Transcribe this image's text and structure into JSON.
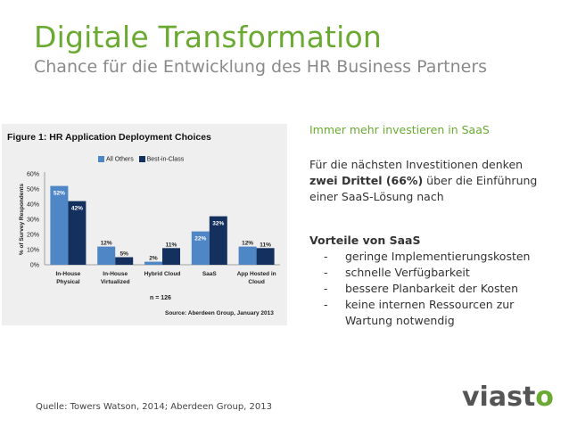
{
  "header": {
    "title": "Digitale Transformation",
    "subtitle": "Chance für die Entwicklung des HR Business Partners"
  },
  "figure": {
    "title": "Figure 1: HR Application Deployment Choices",
    "n_label": "n = 126",
    "source_label": "Source: Aberdeen Group, January 2013",
    "colors": {
      "all_others": "#4f86c6",
      "best_in_class": "#14305e"
    }
  },
  "chart_data": {
    "type": "bar",
    "categories": [
      [
        "In-House",
        "Physical"
      ],
      [
        "In-House",
        "Virtualized"
      ],
      [
        "Hybrid Cloud"
      ],
      [
        "SaaS"
      ],
      [
        "App Hosted in",
        "Cloud"
      ]
    ],
    "series": [
      {
        "name": "All Others",
        "values": [
          52,
          12,
          2,
          22,
          12
        ],
        "labels": [
          "52%",
          "12%",
          "2%",
          "22%",
          "12%"
        ]
      },
      {
        "name": "Best-in-Class",
        "values": [
          42,
          5,
          11,
          32,
          11
        ],
        "labels": [
          "42%",
          "5%",
          "11%",
          "32%",
          "11%"
        ]
      }
    ],
    "ylabel": "% of Survey Respondents",
    "yticks": [
      "0%",
      "10%",
      "20%",
      "30%",
      "40%",
      "50%",
      "60%"
    ],
    "ylim": [
      0,
      60
    ],
    "legend_position": "top"
  },
  "right": {
    "highlight": "Immer mehr investieren in SaaS",
    "para_before": "Für die nächsten Investitionen denken ",
    "para_bold": "zwei Drittel (66%)",
    "para_after": " über die Einführung einer SaaS-Lösung nach",
    "vorteile_title": "Vorteile von SaaS",
    "vorteile": [
      "geringe Implementierungskosten",
      "schnelle Verfügbarkeit",
      "bessere Planbarkeit der Kosten",
      "keine internen Ressourcen zur Wartung notwendig"
    ],
    "dash": "-"
  },
  "footer": {
    "quelle": "Quelle: Towers Watson, 2014; Aberdeen Group, 2013",
    "logo_a": "viast",
    "logo_b": "o"
  }
}
